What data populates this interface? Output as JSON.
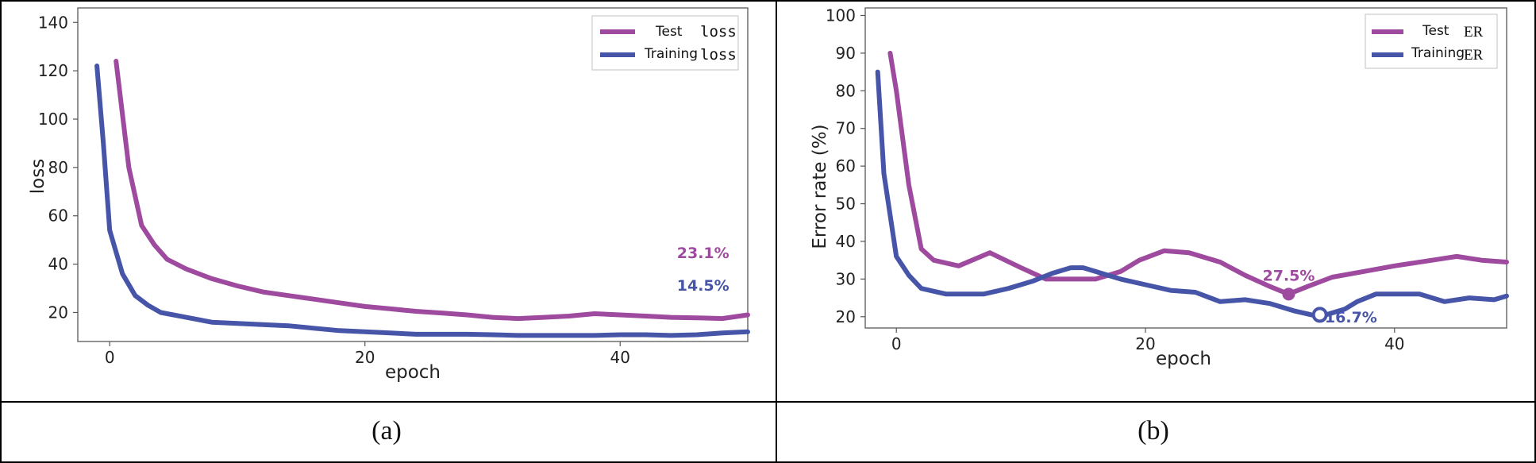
{
  "colors": {
    "test": "#9e4a9e",
    "training": "#4655a8"
  },
  "captions": [
    "(a)",
    "(b)"
  ],
  "chart_data": [
    {
      "type": "line",
      "xlabel": "epoch",
      "ylabel": "loss",
      "xlim": [
        -2.5,
        50
      ],
      "ylim": [
        8,
        146
      ],
      "xticks": [
        0,
        20,
        40
      ],
      "yticks": [
        20,
        40,
        60,
        80,
        100,
        120,
        140
      ],
      "legend_position": "top-right",
      "series": [
        {
          "name": "Test",
          "legend_metric": "loss",
          "color": "#9e4a9e",
          "x": [
            0.5,
            1.5,
            2.5,
            3.5,
            4.5,
            6,
            8,
            10,
            12,
            14,
            16,
            18,
            20,
            22,
            24,
            26,
            28,
            30,
            32,
            34,
            36,
            38,
            40,
            42,
            44,
            46,
            48,
            50
          ],
          "y": [
            124,
            80,
            56,
            48,
            42,
            38,
            34,
            31,
            28.5,
            27,
            25.5,
            24,
            22.5,
            21.5,
            20.5,
            19.8,
            19,
            18,
            17.5,
            18,
            18.5,
            19.5,
            19,
            18.5,
            18,
            17.8,
            17.5,
            19
          ]
        },
        {
          "name": "Training",
          "legend_metric": "loss",
          "color": "#4655a8",
          "x": [
            -1,
            -0.5,
            0,
            1,
            2,
            3,
            4,
            6,
            8,
            10,
            12,
            14,
            16,
            18,
            20,
            22,
            24,
            26,
            28,
            30,
            32,
            34,
            36,
            38,
            40,
            42,
            44,
            46,
            48,
            50
          ],
          "y": [
            122,
            90,
            54,
            36,
            27,
            23,
            20,
            18,
            16,
            15.5,
            15,
            14.5,
            13.5,
            12.5,
            12,
            11.5,
            11,
            11,
            11,
            10.8,
            10.5,
            10.5,
            10.5,
            10.5,
            10.8,
            10.8,
            10.5,
            10.8,
            11.5,
            12
          ]
        }
      ],
      "annotations": [
        {
          "text": "23.1%",
          "x": 46.5,
          "y": 42.5,
          "color": "#9e4a9e"
        },
        {
          "text": "14.5%",
          "x": 46.5,
          "y": 29,
          "color": "#4655a8"
        }
      ],
      "caption": "(a)"
    },
    {
      "type": "line",
      "xlabel": "epoch",
      "ylabel": "Error rate (%)",
      "xlim": [
        -2.5,
        49
      ],
      "ylim": [
        17,
        102
      ],
      "xticks": [
        0,
        20,
        40
      ],
      "yticks": [
        20,
        30,
        40,
        50,
        60,
        70,
        80,
        90,
        100
      ],
      "legend_position": "top-right",
      "series": [
        {
          "name": "Test",
          "legend_metric": "ER",
          "color": "#9e4a9e",
          "x": [
            -0.5,
            0,
            1,
            2,
            3,
            5,
            7.5,
            10,
            12,
            14,
            16,
            18,
            19.5,
            21.5,
            23.5,
            26,
            28,
            30,
            31.5,
            33,
            35,
            37.5,
            40,
            43,
            45,
            47,
            49
          ],
          "y": [
            90,
            80,
            55,
            38,
            35,
            33.5,
            37,
            33,
            30,
            30,
            30,
            32,
            35,
            37.5,
            37,
            34.5,
            31,
            28,
            26,
            28,
            30.5,
            32,
            33.5,
            35,
            36,
            35,
            34.5
          ]
        },
        {
          "name": "Training",
          "legend_metric": "ER",
          "color": "#4655a8",
          "x": [
            -1.5,
            -1,
            0,
            1,
            2,
            4,
            7,
            9,
            11,
            12.5,
            14,
            15,
            16,
            18,
            20,
            22,
            24,
            26,
            28,
            30,
            32,
            34,
            36,
            37,
            38.5,
            40,
            42,
            44,
            46,
            48,
            49
          ],
          "y": [
            85,
            58,
            36,
            31,
            27.5,
            26,
            26,
            27.5,
            29.5,
            31.5,
            33,
            33,
            32,
            30,
            28.5,
            27,
            26.5,
            24,
            24.5,
            23.5,
            21.5,
            20,
            22,
            24,
            26,
            26,
            26,
            24,
            25,
            24.5,
            25.5
          ]
        }
      ],
      "annotations": [
        {
          "text": "27.5%",
          "x": 31.5,
          "y": 29.5,
          "color": "#9e4a9e"
        },
        {
          "text": "16.7%",
          "x": 36.5,
          "y": 18.5,
          "color": "#4655a8"
        }
      ],
      "markers": [
        {
          "x": 31.5,
          "y": 26,
          "color": "#9e4a9e",
          "style": "filled"
        },
        {
          "x": 34,
          "y": 20.5,
          "color": "#4655a8",
          "style": "ring"
        }
      ],
      "caption": "(b)"
    }
  ]
}
